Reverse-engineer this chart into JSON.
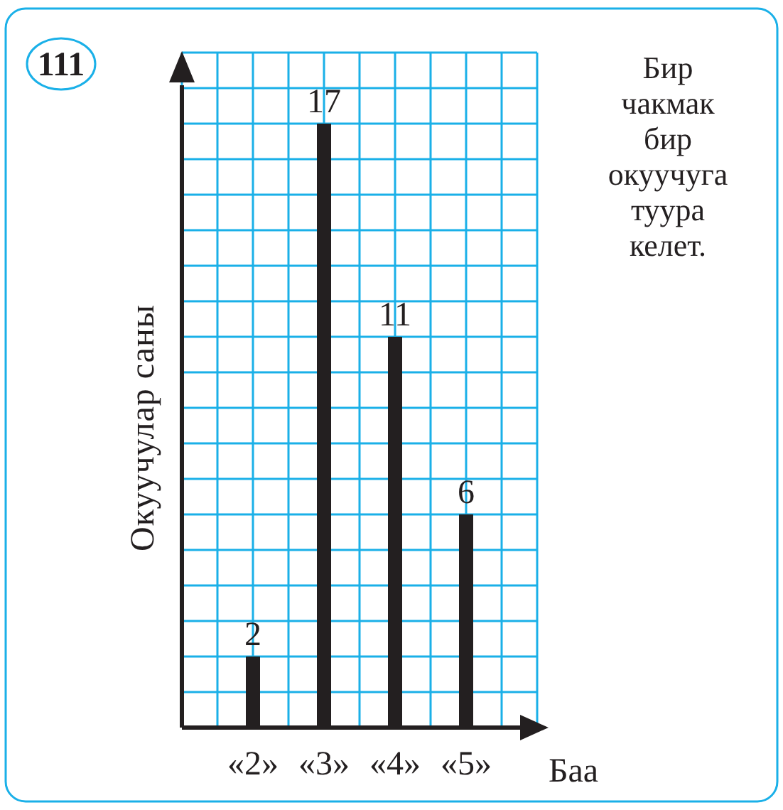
{
  "chart_data": {
    "type": "bar",
    "title": "111",
    "ylabel": "Окуучулар саны",
    "xlabel": "Баа",
    "categories": [
      "«2»",
      "«3»",
      "«4»",
      "«5»"
    ],
    "values": [
      2,
      17,
      11,
      6
    ],
    "color": "#231f20",
    "data_labels": true,
    "grid": true,
    "ylim": [
      0,
      19
    ],
    "yticks": [
      {
        "value": 0,
        "label": null
      },
      {
        "value": 1,
        "label": null
      },
      {
        "value": 2,
        "label": null
      },
      {
        "value": 3,
        "label": null
      },
      {
        "value": 4,
        "label": null
      },
      {
        "value": 5,
        "label": null
      },
      {
        "value": 6,
        "label": null
      },
      {
        "value": 7,
        "label": null
      },
      {
        "value": 8,
        "label": null
      },
      {
        "value": 9,
        "label": null
      },
      {
        "value": 10,
        "label": null
      },
      {
        "value": 11,
        "label": null
      },
      {
        "value": 12,
        "label": null
      },
      {
        "value": 13,
        "label": null
      },
      {
        "value": 14,
        "label": null
      },
      {
        "value": 15,
        "label": null
      },
      {
        "value": 16,
        "label": null
      },
      {
        "value": 17,
        "label": null
      },
      {
        "value": 18,
        "label": null
      },
      {
        "value": 19,
        "label": null
      }
    ],
    "annotations": [
      "Бир чакмак бир окуучуга туура келет."
    ]
  }
}
